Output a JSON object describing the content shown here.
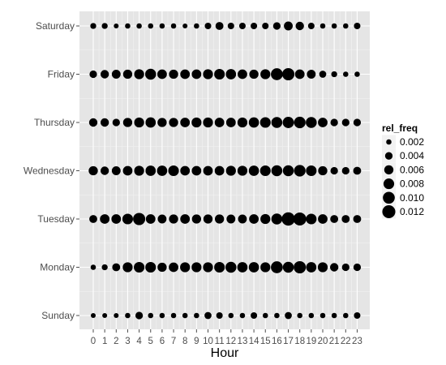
{
  "chart_data": {
    "type": "scatter",
    "xlabel": "Hour",
    "ylabel": "",
    "x_categories": [
      "0",
      "1",
      "2",
      "3",
      "4",
      "5",
      "6",
      "7",
      "8",
      "9",
      "10",
      "11",
      "12",
      "13",
      "14",
      "15",
      "16",
      "17",
      "18",
      "19",
      "20",
      "21",
      "22",
      "23"
    ],
    "y_categories": [
      "Sunday",
      "Monday",
      "Tuesday",
      "Wednesday",
      "Thursday",
      "Friday",
      "Saturday"
    ],
    "size_variable": "rel_freq",
    "legend": {
      "title": "rel_freq",
      "placement": "right",
      "entries": [
        "0.002",
        "0.004",
        "0.006",
        "0.008",
        "0.010",
        "0.012"
      ],
      "values": [
        0.002,
        0.004,
        0.006,
        0.008,
        0.01,
        0.012
      ]
    },
    "grid": true,
    "points": {
      "Sunday": [
        0.0017,
        0.0017,
        0.0017,
        0.002,
        0.004,
        0.002,
        0.002,
        0.002,
        0.002,
        0.002,
        0.0035,
        0.003,
        0.002,
        0.002,
        0.003,
        0.002,
        0.002,
        0.0035,
        0.002,
        0.002,
        0.002,
        0.002,
        0.002,
        0.003
      ],
      "Monday": [
        0.002,
        0.0025,
        0.0045,
        0.007,
        0.008,
        0.008,
        0.006,
        0.0065,
        0.007,
        0.007,
        0.007,
        0.008,
        0.0085,
        0.0075,
        0.0075,
        0.007,
        0.01,
        0.0085,
        0.0105,
        0.0075,
        0.007,
        0.005,
        0.004,
        0.004
      ],
      "Tuesday": [
        0.0045,
        0.0065,
        0.0065,
        0.008,
        0.0105,
        0.0065,
        0.0055,
        0.006,
        0.0065,
        0.006,
        0.006,
        0.006,
        0.0055,
        0.0055,
        0.0065,
        0.007,
        0.0085,
        0.0125,
        0.012,
        0.008,
        0.0065,
        0.0045,
        0.0045,
        0.0045
      ],
      "Wednesday": [
        0.006,
        0.005,
        0.0055,
        0.0065,
        0.007,
        0.0075,
        0.0075,
        0.008,
        0.0065,
        0.0065,
        0.0065,
        0.0065,
        0.007,
        0.007,
        0.0075,
        0.008,
        0.0085,
        0.0085,
        0.0095,
        0.008,
        0.006,
        0.004,
        0.004,
        0.0045
      ],
      "Thursday": [
        0.005,
        0.005,
        0.004,
        0.006,
        0.007,
        0.0075,
        0.006,
        0.006,
        0.0065,
        0.007,
        0.007,
        0.0065,
        0.0065,
        0.007,
        0.0075,
        0.008,
        0.0085,
        0.009,
        0.0095,
        0.0085,
        0.0065,
        0.004,
        0.004,
        0.004
      ],
      "Friday": [
        0.004,
        0.005,
        0.0055,
        0.006,
        0.007,
        0.0085,
        0.0065,
        0.006,
        0.0065,
        0.0065,
        0.007,
        0.008,
        0.0075,
        0.0065,
        0.006,
        0.007,
        0.01,
        0.0105,
        0.0065,
        0.0055,
        0.0035,
        0.0025,
        0.002,
        0.002
      ],
      "Saturday": [
        0.0025,
        0.0025,
        0.0017,
        0.002,
        0.002,
        0.002,
        0.002,
        0.002,
        0.0017,
        0.002,
        0.003,
        0.0045,
        0.003,
        0.003,
        0.003,
        0.003,
        0.004,
        0.0055,
        0.005,
        0.003,
        0.002,
        0.002,
        0.002,
        0.003
      ]
    }
  }
}
